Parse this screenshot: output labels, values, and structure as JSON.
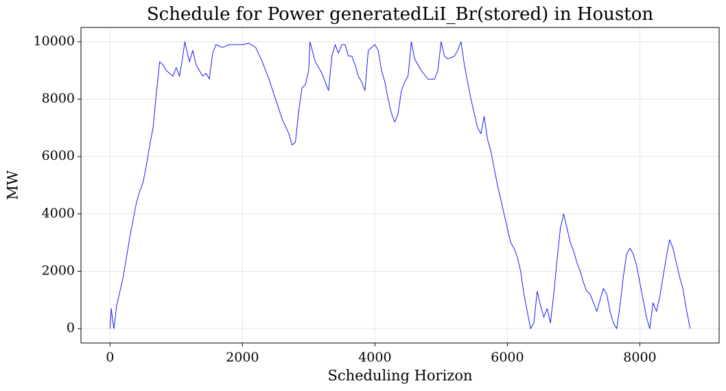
{
  "chart_data": {
    "type": "line",
    "title": "Schedule for Power generatedLiI_Br(stored) in Houston",
    "x_label": "Scheduling Horizon",
    "y_label": "MW",
    "color": "#0000ff",
    "grid": true,
    "xlim": [
      -438,
      9197
    ],
    "ylim": [
      -500,
      10500
    ],
    "xticks": [
      0,
      2000,
      4000,
      6000,
      8000
    ],
    "yticks": [
      0,
      2000,
      4000,
      6000,
      8000,
      10000
    ],
    "x": [
      0,
      20,
      40,
      60,
      80,
      100,
      150,
      200,
      250,
      300,
      350,
      400,
      450,
      500,
      550,
      600,
      650,
      700,
      750,
      800,
      850,
      900,
      950,
      1000,
      1050,
      1100,
      1130,
      1200,
      1250,
      1300,
      1350,
      1400,
      1450,
      1500,
      1550,
      1600,
      1700,
      1800,
      1900,
      2000,
      2100,
      2200,
      2300,
      2400,
      2500,
      2600,
      2700,
      2750,
      2800,
      2850,
      2900,
      2950,
      3000,
      3020,
      3100,
      3200,
      3300,
      3350,
      3400,
      3450,
      3500,
      3550,
      3600,
      3650,
      3700,
      3750,
      3800,
      3850,
      3900,
      3950,
      4000,
      4050,
      4100,
      4150,
      4200,
      4250,
      4300,
      4350,
      4400,
      4450,
      4500,
      4550,
      4600,
      4700,
      4800,
      4900,
      4950,
      5000,
      5050,
      5100,
      5200,
      5250,
      5300,
      5350,
      5400,
      5450,
      5500,
      5550,
      5600,
      5650,
      5700,
      5750,
      5800,
      5850,
      5900,
      5950,
      6000,
      6050,
      6100,
      6150,
      6200,
      6250,
      6300,
      6350,
      6400,
      6450,
      6500,
      6550,
      6600,
      6650,
      6700,
      6750,
      6800,
      6850,
      6900,
      6950,
      7000,
      7050,
      7100,
      7150,
      7200,
      7250,
      7300,
      7350,
      7400,
      7450,
      7500,
      7550,
      7600,
      7650,
      7700,
      7750,
      7800,
      7850,
      7900,
      7950,
      8000,
      8050,
      8100,
      8150,
      8200,
      8250,
      8300,
      8350,
      8400,
      8450,
      8500,
      8550,
      8600,
      8650,
      8700,
      8759
    ],
    "values": [
      0,
      700,
      300,
      0,
      400,
      800,
      1300,
      1800,
      2500,
      3200,
      3800,
      4400,
      4800,
      5100,
      5700,
      6400,
      7000,
      8200,
      9300,
      9200,
      9000,
      8900,
      8800,
      9100,
      8800,
      9500,
      10000,
      9300,
      9700,
      9200,
      9000,
      8800,
      8900,
      8700,
      9600,
      9900,
      9800,
      9900,
      9900,
      9900,
      9950,
      9800,
      9300,
      8700,
      8000,
      7300,
      6800,
      6400,
      6500,
      7600,
      8400,
      8500,
      9000,
      10000,
      9300,
      8900,
      8300,
      9500,
      9900,
      9600,
      9900,
      9900,
      9500,
      9500,
      9200,
      8800,
      8600,
      8300,
      9700,
      9800,
      9900,
      9700,
      9000,
      8600,
      8000,
      7500,
      7200,
      7500,
      8300,
      8600,
      8800,
      10000,
      9400,
      9000,
      8700,
      8700,
      9000,
      10000,
      9500,
      9400,
      9500,
      9700,
      10000,
      9200,
      8600,
      8000,
      7500,
      7000,
      6800,
      7400,
      6600,
      6200,
      5600,
      5000,
      4500,
      4000,
      3500,
      3000,
      2800,
      2500,
      2000,
      1200,
      600,
      0,
      200,
      1300,
      800,
      400,
      700,
      200,
      1200,
      2400,
      3500,
      4000,
      3500,
      3000,
      2700,
      2300,
      2000,
      1600,
      1300,
      1200,
      900,
      600,
      1000,
      1400,
      1200,
      600,
      200,
      0,
      800,
      1800,
      2600,
      2800,
      2600,
      2200,
      1600,
      1000,
      400,
      0,
      900,
      600,
      1100,
      1800,
      2500,
      3100,
      2800,
      2300,
      1800,
      1400,
      700,
      0
    ]
  }
}
